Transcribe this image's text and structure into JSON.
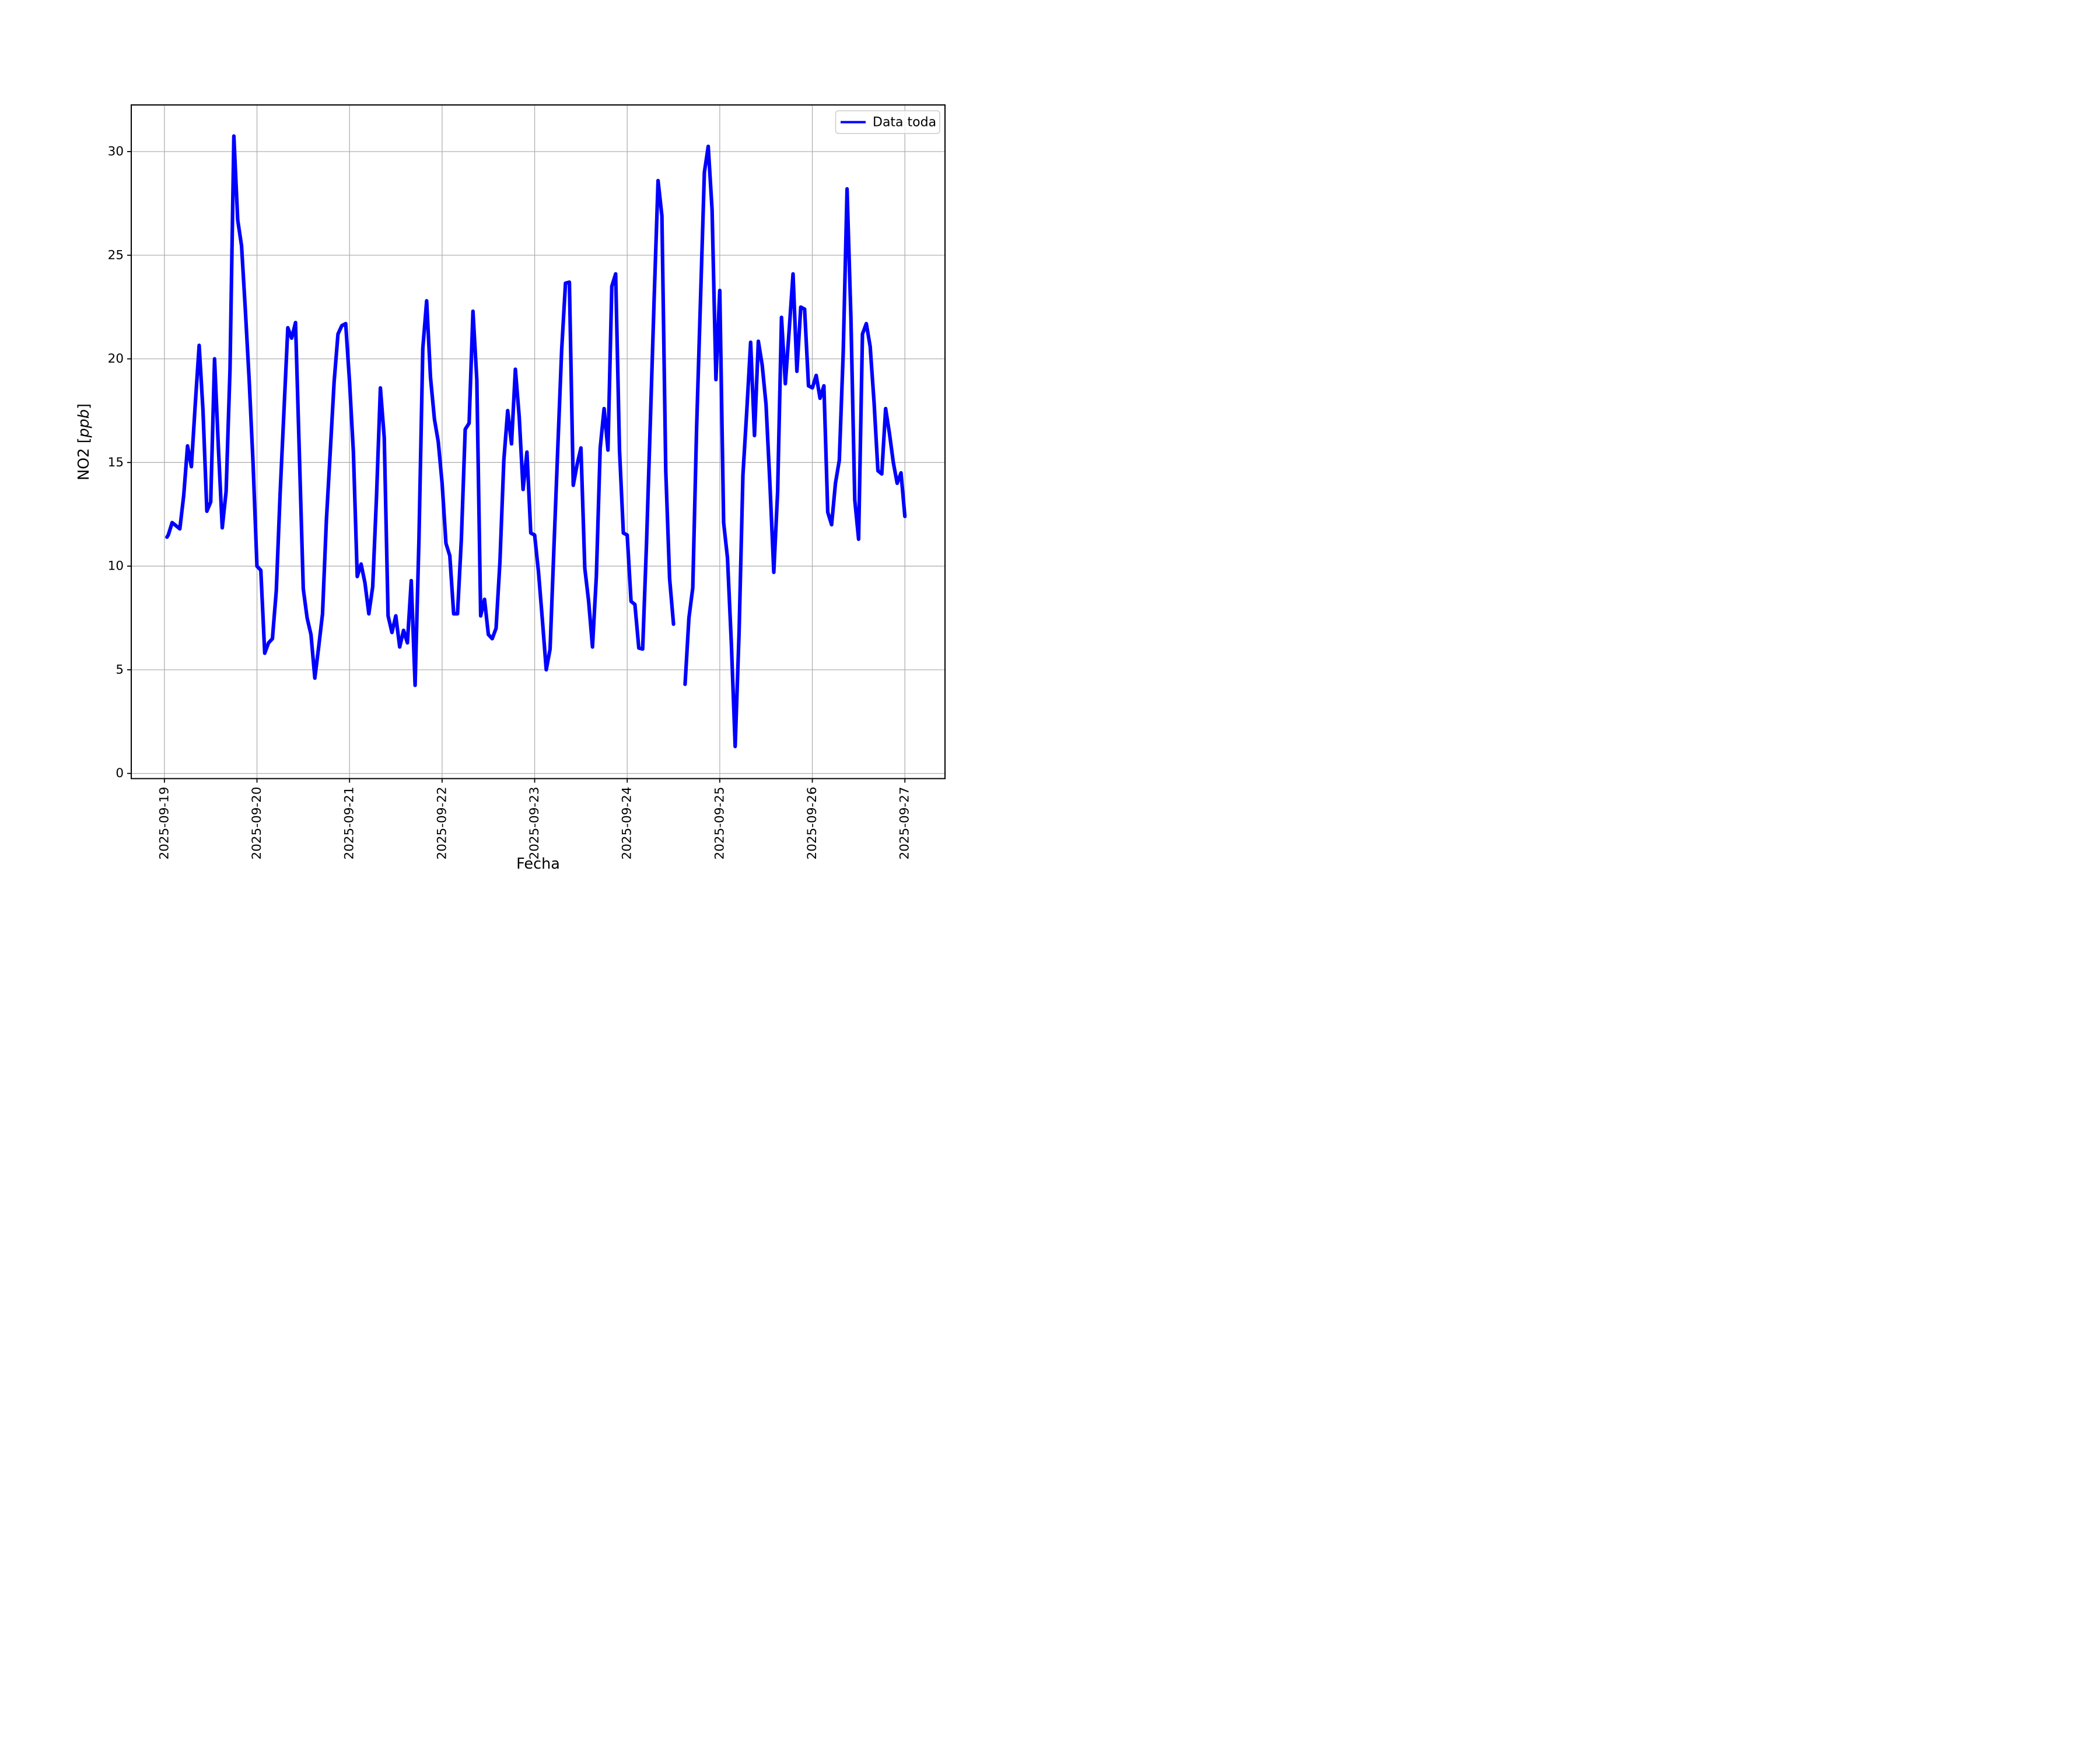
{
  "chart_data": {
    "type": "line",
    "title": "",
    "xlabel": "Fecha",
    "ylabel": "NO2 [ppb]",
    "ylabel_parts": {
      "prefix": "NO2 [",
      "italic": "ppb",
      "suffix": "]"
    },
    "legend": {
      "label": "Data toda",
      "position": "upper right"
    },
    "line_color": "#0000ff",
    "grid": true,
    "grid_color": "#b0b0b0",
    "background_color": "#ffffff",
    "x_start_date": "2025-09-19",
    "sampling": "hourly (x = hours since 2025-09-19 00:00, null = missing data gap)",
    "x_tick_hours": [
      0,
      24,
      48,
      72,
      96,
      120,
      144,
      168,
      192
    ],
    "x_tick_labels": [
      "2025-09-19",
      "2025-09-20",
      "2025-09-21",
      "2025-09-22",
      "2025-09-23",
      "2025-09-24",
      "2025-09-25",
      "2025-09-26",
      "2025-09-27"
    ],
    "y_ticks": [
      0,
      5,
      10,
      15,
      20,
      25,
      30
    ],
    "xlim_hours": [
      -8.6,
      202.4
    ],
    "ylim": [
      -0.25,
      32.25
    ],
    "points": [
      [
        0.65,
        11.4
      ],
      [
        1,
        11.5
      ],
      [
        2,
        12.1
      ],
      [
        3,
        11.95
      ],
      [
        4,
        11.8
      ],
      [
        5,
        13.4
      ],
      [
        6,
        15.8
      ],
      [
        7,
        14.8
      ],
      [
        8,
        17.8
      ],
      [
        9,
        20.65
      ],
      [
        10,
        17.5
      ],
      [
        11,
        12.65
      ],
      [
        12,
        13.1
      ],
      [
        13,
        20.0
      ],
      [
        14,
        15.7
      ],
      [
        15,
        11.85
      ],
      [
        16,
        13.6
      ],
      [
        17,
        19.5
      ],
      [
        18,
        30.75
      ],
      [
        19,
        26.7
      ],
      [
        20,
        25.45
      ],
      [
        21,
        22.3
      ],
      [
        22,
        18.9
      ],
      [
        23,
        14.9
      ],
      [
        24,
        10.0
      ],
      [
        25,
        9.8
      ],
      [
        26,
        5.8
      ],
      [
        27,
        6.3
      ],
      [
        28,
        6.5
      ],
      [
        29,
        8.8
      ],
      [
        30,
        13.5
      ],
      [
        31,
        17.5
      ],
      [
        32,
        21.5
      ],
      [
        33,
        21.0
      ],
      [
        34,
        21.75
      ],
      [
        35,
        15.3
      ],
      [
        36,
        8.9
      ],
      [
        37,
        7.5
      ],
      [
        38,
        6.7
      ],
      [
        39,
        4.6
      ],
      [
        40,
        6.1
      ],
      [
        41,
        7.7
      ],
      [
        42,
        12.2
      ],
      [
        43,
        15.5
      ],
      [
        44,
        18.9
      ],
      [
        45,
        21.2
      ],
      [
        46,
        21.6
      ],
      [
        47,
        21.7
      ],
      [
        48,
        18.9
      ],
      [
        49,
        15.5
      ],
      [
        50,
        9.5
      ],
      [
        51,
        10.1
      ],
      [
        52,
        9.2
      ],
      [
        53,
        7.7
      ],
      [
        54,
        9.0
      ],
      [
        55,
        13.4
      ],
      [
        56,
        18.6
      ],
      [
        57,
        16.2
      ],
      [
        58,
        7.6
      ],
      [
        59,
        6.8
      ],
      [
        60,
        7.6
      ],
      [
        61,
        6.1
      ],
      [
        62,
        6.9
      ],
      [
        63,
        6.3
      ],
      [
        64,
        9.3
      ],
      [
        65,
        4.25
      ],
      [
        66,
        11.3
      ],
      [
        67,
        20.5
      ],
      [
        68,
        22.8
      ],
      [
        69,
        19.1
      ],
      [
        70,
        17.1
      ],
      [
        71,
        16.0
      ],
      [
        72,
        14.0
      ],
      [
        73,
        11.1
      ],
      [
        74,
        10.5
      ],
      [
        75,
        7.7
      ],
      [
        76,
        7.7
      ],
      [
        77,
        11.3
      ],
      [
        78,
        16.6
      ],
      [
        79,
        16.9
      ],
      [
        80,
        22.3
      ],
      [
        81,
        19.0
      ],
      [
        82,
        7.6
      ],
      [
        83,
        8.4
      ],
      [
        84,
        6.7
      ],
      [
        85,
        6.5
      ],
      [
        86,
        7.0
      ],
      [
        87,
        10.2
      ],
      [
        88,
        15.1
      ],
      [
        89,
        17.5
      ],
      [
        90,
        15.9
      ],
      [
        91,
        19.5
      ],
      [
        92,
        17.2
      ],
      [
        93,
        13.7
      ],
      [
        94,
        15.5
      ],
      [
        95,
        11.6
      ],
      [
        96,
        11.5
      ],
      [
        97,
        9.7
      ],
      [
        98,
        7.4
      ],
      [
        99,
        5.0
      ],
      [
        100,
        6.0
      ],
      [
        101,
        10.9
      ],
      [
        102,
        15.7
      ],
      [
        103,
        20.4
      ],
      [
        104,
        23.65
      ],
      [
        105,
        23.7
      ],
      [
        106,
        13.9
      ],
      [
        107,
        14.9
      ],
      [
        108,
        15.7
      ],
      [
        109,
        9.9
      ],
      [
        110,
        8.3
      ],
      [
        111,
        6.1
      ],
      [
        112,
        9.5
      ],
      [
        113,
        15.7
      ],
      [
        114,
        17.6
      ],
      [
        115,
        15.6
      ],
      [
        116,
        23.5
      ],
      [
        117,
        24.1
      ],
      [
        118,
        15.6
      ],
      [
        119,
        11.6
      ],
      [
        120,
        11.5
      ],
      [
        121,
        8.3
      ],
      [
        122,
        8.15
      ],
      [
        123,
        6.05
      ],
      [
        124,
        6.0
      ],
      [
        125,
        11.1
      ],
      [
        126,
        17.0
      ],
      [
        127,
        23.0
      ],
      [
        128,
        28.6
      ],
      [
        129,
        26.9
      ],
      [
        130,
        14.6
      ],
      [
        131,
        9.4
      ],
      [
        132,
        7.2
      ],
      [
        133,
        null
      ],
      [
        134,
        null
      ],
      [
        135,
        4.3
      ],
      [
        136,
        7.5
      ],
      [
        137,
        8.95
      ],
      [
        138,
        16.7
      ],
      [
        139,
        22.8
      ],
      [
        140,
        29.0
      ],
      [
        141,
        30.25
      ],
      [
        142,
        27.2
      ],
      [
        143,
        19.0
      ],
      [
        144,
        23.3
      ],
      [
        145,
        12.1
      ],
      [
        146,
        10.4
      ],
      [
        147,
        6.3
      ],
      [
        148,
        1.3
      ],
      [
        149,
        6.8
      ],
      [
        150,
        14.4
      ],
      [
        151,
        17.5
      ],
      [
        152,
        20.8
      ],
      [
        153,
        16.3
      ],
      [
        154,
        20.85
      ],
      [
        155,
        19.7
      ],
      [
        156,
        17.8
      ],
      [
        157,
        14.0
      ],
      [
        158,
        9.7
      ],
      [
        159,
        13.6
      ],
      [
        160,
        22.0
      ],
      [
        161,
        18.8
      ],
      [
        162,
        21.4
      ],
      [
        163,
        24.1
      ],
      [
        164,
        19.4
      ],
      [
        165,
        22.5
      ],
      [
        166,
        22.4
      ],
      [
        167,
        18.7
      ],
      [
        168,
        18.6
      ],
      [
        169,
        19.2
      ],
      [
        170,
        18.1
      ],
      [
        171,
        18.7
      ],
      [
        172,
        12.6
      ],
      [
        173,
        12.0
      ],
      [
        174,
        14.0
      ],
      [
        175,
        15.1
      ],
      [
        176,
        20.3
      ],
      [
        177,
        28.2
      ],
      [
        178,
        22.0
      ],
      [
        179,
        13.2
      ],
      [
        180,
        11.3
      ],
      [
        181,
        21.2
      ],
      [
        182,
        21.7
      ],
      [
        183,
        20.6
      ],
      [
        184,
        17.9
      ],
      [
        185,
        14.6
      ],
      [
        186,
        14.45
      ],
      [
        187,
        17.6
      ],
      [
        188,
        16.4
      ],
      [
        189,
        15.0
      ],
      [
        190,
        14.0
      ],
      [
        191,
        14.5
      ],
      [
        192,
        12.4
      ]
    ]
  }
}
